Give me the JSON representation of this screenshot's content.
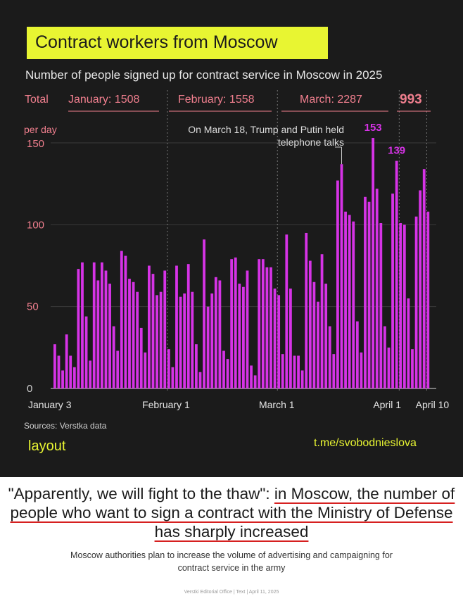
{
  "header": {
    "title": "Contract workers from Moscow"
  },
  "subtitle": "Number of people signed up for contract service in Moscow in 2025",
  "totals": {
    "label": "Total",
    "january": "January: 1508",
    "february": "February: 1558",
    "march": "March: 2287",
    "april": "993"
  },
  "chart_data": {
    "type": "bar",
    "ylabel": "per day",
    "ylim": [
      0,
      150
    ],
    "yticks": [
      "0",
      "50",
      "100",
      "150"
    ],
    "xtick_labels": [
      "January 3",
      "February 1",
      "March 1",
      "April 1",
      "April 10"
    ],
    "color": "#d633e6",
    "annotation": "On March 18, Trump and Putin held telephone talks",
    "peak_labels": [
      "153",
      "139"
    ],
    "series": [
      {
        "values": [
          27,
          20,
          11,
          33,
          20,
          13,
          73,
          77,
          44,
          17,
          77,
          66,
          77,
          72,
          64,
          38,
          23,
          84,
          81,
          67,
          65,
          59,
          37,
          22,
          75,
          70,
          57,
          59,
          72,
          24,
          13,
          75,
          56,
          58,
          76,
          59,
          27,
          10,
          91,
          50,
          58,
          68,
          66,
          23,
          18,
          79,
          80,
          64,
          62,
          72,
          14,
          8,
          79,
          79,
          74,
          74,
          61,
          57,
          21,
          94,
          61,
          20,
          20,
          11,
          95,
          78,
          65,
          53,
          82,
          64,
          38,
          21,
          127,
          137,
          108,
          106,
          102,
          41,
          22,
          117,
          114,
          153,
          122,
          101,
          38,
          25,
          119,
          139,
          101,
          100,
          55,
          24,
          105,
          121,
          134,
          108
        ]
      }
    ]
  },
  "sources": "Sources: Verstka data",
  "brand": "layout",
  "channel": "t.me/svobodnieslova",
  "article": {
    "headline_start": "\"Apparently, we will fight to the thaw\": ",
    "headline_underlined": "in Moscow, the number of people who want to sign a contract with the Ministry of Defense has sharply increased",
    "lede": "Moscow authorities plan to increase the volume of advertising and campaigning for contract service in the army",
    "credits": "Verstki Editorial Office  |  Text  |  April 11, 2025"
  }
}
